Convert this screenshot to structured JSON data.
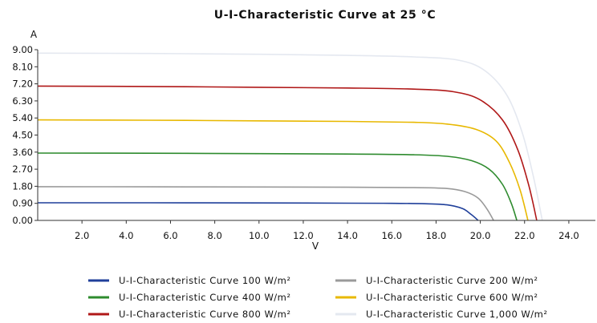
{
  "chart_data": {
    "type": "line",
    "title": "U-I-Characteristic Curve at 25 °C",
    "xlabel": "V",
    "ylabel": "A",
    "xlim": [
      0,
      25.2
    ],
    "ylim": [
      0,
      9.0
    ],
    "x_ticks": [
      "2.0",
      "4.0",
      "6.0",
      "8.0",
      "10.0",
      "12.0",
      "14.0",
      "16.0",
      "18.0",
      "20.0",
      "22.0",
      "24.0"
    ],
    "y_ticks": [
      "9.00",
      "8.10",
      "7.20",
      "6.30",
      "5.40",
      "4.50",
      "3.60",
      "2.70",
      "1.80",
      "0.90",
      "0.00"
    ],
    "grid": false,
    "legend_position": "bottom",
    "series": [
      {
        "name": "U-I-Characteristic Curve 100 W/m²",
        "color": "#1f3f9a",
        "x": [
          0,
          5,
          10,
          14,
          16,
          17.5,
          18.5,
          19.2,
          19.6,
          19.9
        ],
        "y": [
          0.93,
          0.93,
          0.92,
          0.91,
          0.9,
          0.88,
          0.82,
          0.62,
          0.3,
          0.0
        ]
      },
      {
        "name": "U-I-Characteristic Curve 200 W/m²",
        "color": "#9a9a9a",
        "x": [
          0,
          5,
          10,
          14,
          17,
          18.5,
          19.3,
          19.9,
          20.3,
          20.6
        ],
        "y": [
          1.78,
          1.77,
          1.76,
          1.75,
          1.73,
          1.68,
          1.52,
          1.18,
          0.6,
          0.0
        ]
      },
      {
        "name": "U-I-Characteristic Curve 400 W/m²",
        "color": "#2e8b2e",
        "x": [
          0,
          5,
          10,
          14,
          17,
          18.5,
          19.6,
          20.4,
          21.0,
          21.4,
          21.65
        ],
        "y": [
          3.55,
          3.54,
          3.52,
          3.5,
          3.46,
          3.38,
          3.15,
          2.7,
          1.9,
          0.9,
          0.0
        ]
      },
      {
        "name": "U-I-Characteristic Curve 600 W/m²",
        "color": "#e8b800",
        "x": [
          0,
          5,
          10,
          14,
          17,
          18.5,
          19.8,
          20.7,
          21.3,
          21.8,
          22.15
        ],
        "y": [
          5.3,
          5.28,
          5.25,
          5.22,
          5.17,
          5.08,
          4.8,
          4.2,
          3.1,
          1.6,
          0.0
        ]
      },
      {
        "name": "U-I-Characteristic Curve 800 W/m²",
        "color": "#b01818",
        "x": [
          0,
          5,
          10,
          14,
          17,
          18.8,
          20.0,
          21.0,
          21.7,
          22.2,
          22.55
        ],
        "y": [
          7.08,
          7.06,
          7.02,
          6.98,
          6.92,
          6.78,
          6.35,
          5.3,
          3.7,
          1.8,
          0.0
        ]
      },
      {
        "name": "U-I-Characteristic Curve 1,000 W/m²",
        "color": "#e4e8f0",
        "x": [
          0,
          5,
          10,
          14,
          17,
          19.0,
          20.2,
          21.2,
          21.9,
          22.4,
          22.8
        ],
        "y": [
          8.82,
          8.8,
          8.76,
          8.7,
          8.62,
          8.45,
          7.9,
          6.6,
          4.6,
          2.3,
          0.0
        ]
      }
    ]
  }
}
